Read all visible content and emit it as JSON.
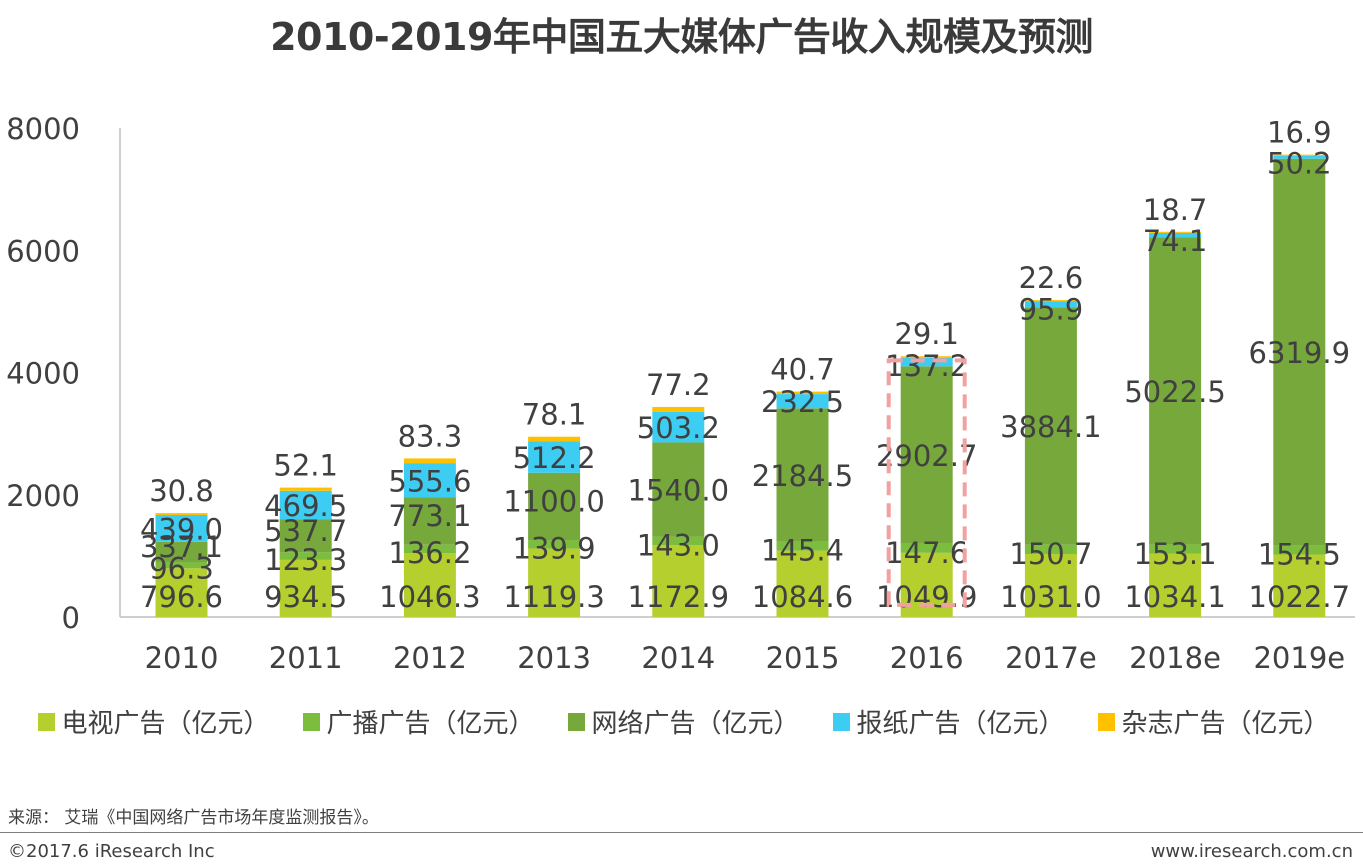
{
  "chart_data": {
    "type": "bar",
    "stacked": true,
    "title": "2010-2019年中国五大媒体广告收入规模及预测",
    "xlabel": "",
    "ylabel": "",
    "ylim": [
      0,
      8000
    ],
    "yticks": [
      0,
      2000,
      4000,
      6000,
      8000
    ],
    "categories": [
      "2010",
      "2011",
      "2012",
      "2013",
      "2014",
      "2015",
      "2016",
      "2017e",
      "2018e",
      "2019e"
    ],
    "series": [
      {
        "name": "电视广告（亿元）",
        "color": "#b5cf2f",
        "values": [
          796.6,
          934.5,
          1046.3,
          1119.3,
          1172.9,
          1084.6,
          1049.9,
          1031.0,
          1034.1,
          1022.7
        ],
        "labels": [
          "796.6",
          "934.5",
          "1046.3",
          "1119.3",
          "1172.9",
          "1084.6",
          "1049.9",
          "1031.0",
          "1034.1",
          "1022.7"
        ]
      },
      {
        "name": "广播广告（亿元）",
        "color": "#7dbd3e",
        "values": [
          96.3,
          123.3,
          136.2,
          139.9,
          143.0,
          145.4,
          147.6,
          150.7,
          153.1,
          154.5
        ],
        "labels": [
          "96.3",
          "123.3",
          "136.2",
          "139.9",
          "143.0",
          "145.4",
          "147.6",
          "150.7",
          "153.1",
          "154.5"
        ]
      },
      {
        "name": "网络广告（亿元）",
        "color": "#76a83c",
        "values": [
          337.1,
          537.7,
          773.1,
          1100.0,
          1540.0,
          2184.5,
          2902.7,
          3884.1,
          5022.5,
          6319.9
        ],
        "labels": [
          "337.1",
          "537.7",
          "773.1",
          "1100.0",
          "1540.0",
          "2184.5",
          "2902.7",
          "3884.1",
          "5022.5",
          "6319.9"
        ]
      },
      {
        "name": "报纸广告（亿元）",
        "color": "#3dcdf2",
        "values": [
          439.0,
          469.5,
          555.6,
          512.2,
          503.2,
          232.5,
          137.2,
          95.9,
          74.1,
          50.2
        ],
        "labels": [
          "439.0",
          "469.5",
          "555.6",
          "512.2",
          "503.2",
          "232.5",
          "137.2",
          "95.9",
          "74.1",
          "50.2"
        ]
      },
      {
        "name": "杂志广告（亿元）",
        "color": "#ffc000",
        "values": [
          30.8,
          52.1,
          83.3,
          78.1,
          77.2,
          40.7,
          29.1,
          22.6,
          18.7,
          16.9
        ],
        "labels": [
          "30.8",
          "52.1",
          "83.3",
          "78.1",
          "77.2",
          "40.7",
          "29.1",
          "22.6",
          "18.7",
          "16.9"
        ]
      }
    ],
    "highlight": {
      "category": "2016",
      "series": [
        "广播广告（亿元）",
        "网络广告（亿元）"
      ],
      "style": "dashed-box",
      "color": "#f2a0a0"
    }
  },
  "footer": {
    "source": "来源： 艾瑞《中国网络广告市场年度监测报告》。",
    "copyright": "©2017.6 iResearch Inc",
    "website": "www.iresearch.com.cn"
  }
}
